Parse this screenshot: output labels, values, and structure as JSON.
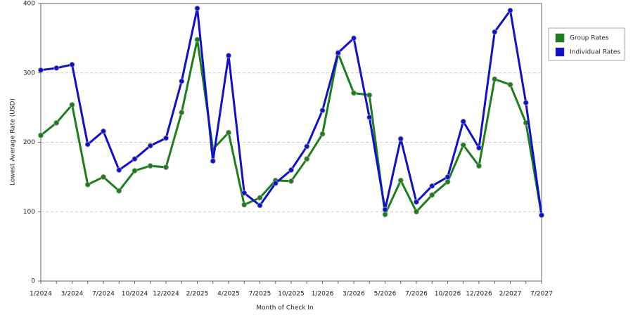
{
  "chart_data": {
    "type": "line",
    "x_label": "Month of Check In",
    "y_label": "Lowest Average Rate (USD)",
    "categories": [
      "1/2024",
      null,
      "3/2024",
      null,
      "7/2024",
      null,
      "10/2024",
      null,
      "12/2024",
      null,
      "2/2025",
      null,
      "4/2025",
      null,
      "7/2025",
      null,
      "10/2025",
      null,
      "1/2026",
      null,
      "3/2026",
      null,
      "5/2026",
      null,
      "7/2026",
      null,
      "10/2026",
      null,
      "12/2026",
      null,
      "2/2027",
      null,
      "7/2027"
    ],
    "series": [
      {
        "name": "Group Rates",
        "color": "#1a7f1a",
        "values": [
          210,
          228,
          254,
          139,
          150,
          130,
          159,
          166,
          164,
          243,
          348,
          190,
          214,
          110,
          120,
          145,
          144,
          176,
          212,
          328,
          271,
          268,
          96,
          145,
          100,
          124,
          143,
          196,
          166,
          291,
          283,
          228,
          95
        ]
      },
      {
        "name": "Individual Rates",
        "color": "#1010cc",
        "values": [
          304,
          307,
          312,
          197,
          216,
          160,
          176,
          195,
          206,
          288,
          393,
          173,
          325,
          127,
          109,
          141,
          160,
          194,
          246,
          329,
          350,
          236,
          103,
          205,
          114,
          137,
          150,
          230,
          192,
          359,
          390,
          257,
          95
        ]
      }
    ],
    "ylim": [
      0,
      400
    ],
    "yticks": [
      0,
      100,
      200,
      300,
      400
    ],
    "grid": true,
    "legend": "right"
  }
}
